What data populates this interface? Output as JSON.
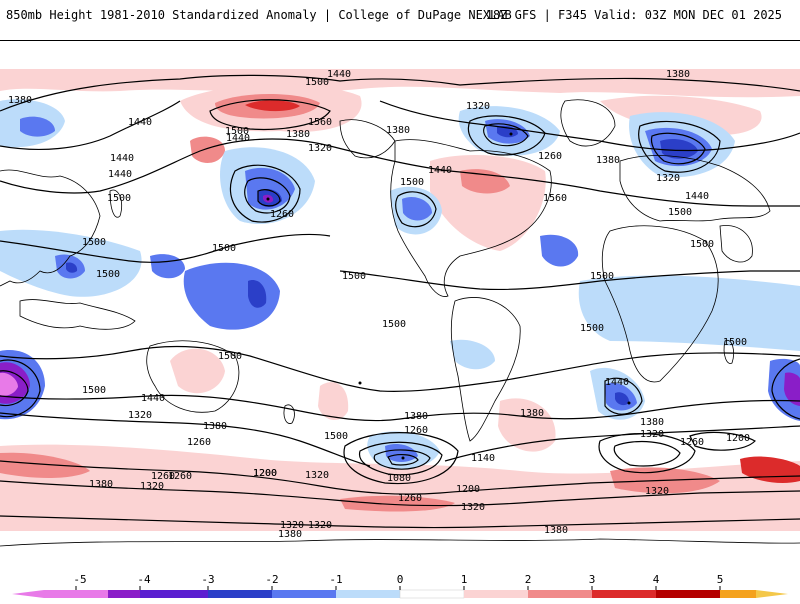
{
  "header": {
    "left_title": "850mb Height 1981-2010 Standardized Anomaly | College of DuPage NEXLAB",
    "right_title": "18Z GFS | F345 Valid: 03Z MON DEC 01 2025"
  },
  "colors": {
    "neg5": "#e87ae8",
    "neg4": "#8a1ec8",
    "neg3": "#2b3fc8",
    "neg2": "#5a78f0",
    "neg1": "#bcdcfa",
    "zero": "#ffffff",
    "pos1": "#fbd3d3",
    "pos2": "#f08a8a",
    "pos3": "#dc2b2b",
    "pos4": "#b40000",
    "pos5": "#f4a21e",
    "land": "#000000"
  },
  "colorbar": {
    "labels": [
      "-5",
      "-4",
      "-3",
      "-2",
      "-1",
      "0",
      "1",
      "2",
      "3",
      "4",
      "5"
    ]
  },
  "contour_labels": [
    {
      "text": "1440"
    },
    {
      "text": "1500"
    },
    {
      "text": "1380"
    },
    {
      "text": "1380"
    },
    {
      "text": "1440"
    },
    {
      "text": "1440"
    },
    {
      "text": "1560"
    },
    {
      "text": "1500"
    },
    {
      "text": "1440"
    },
    {
      "text": "1380"
    },
    {
      "text": "1320"
    },
    {
      "text": "1320"
    },
    {
      "text": "1380"
    },
    {
      "text": "1260"
    },
    {
      "text": "1380"
    },
    {
      "text": "1500"
    },
    {
      "text": "1440"
    },
    {
      "text": "1560"
    },
    {
      "text": "1260"
    },
    {
      "text": "1320"
    },
    {
      "text": "1440"
    },
    {
      "text": "1500"
    },
    {
      "text": "1500"
    },
    {
      "text": "1440"
    },
    {
      "text": "1500"
    },
    {
      "text": "1500"
    },
    {
      "text": "1500"
    },
    {
      "text": "1500"
    },
    {
      "text": "1500"
    },
    {
      "text": "1500"
    },
    {
      "text": "1500"
    },
    {
      "text": "1500"
    },
    {
      "text": "1500"
    },
    {
      "text": "1500"
    },
    {
      "text": "1440"
    },
    {
      "text": "1500"
    },
    {
      "text": "1500"
    },
    {
      "text": "1320"
    },
    {
      "text": "1380"
    },
    {
      "text": "1260"
    },
    {
      "text": "1200"
    },
    {
      "text": "1380"
    },
    {
      "text": "1260"
    },
    {
      "text": "1140"
    },
    {
      "text": "1080"
    },
    {
      "text": "1200"
    },
    {
      "text": "1260"
    },
    {
      "text": "1320"
    },
    {
      "text": "1380"
    },
    {
      "text": "1320"
    },
    {
      "text": "1320"
    },
    {
      "text": "1260"
    },
    {
      "text": "1440"
    },
    {
      "text": "1380"
    },
    {
      "text": "1320"
    },
    {
      "text": "1260"
    },
    {
      "text": "1200"
    },
    {
      "text": "1320"
    },
    {
      "text": "1200"
    },
    {
      "text": "1260"
    },
    {
      "text": "1380"
    },
    {
      "text": "1320"
    },
    {
      "text": "1320"
    },
    {
      "text": "1380"
    },
    {
      "text": "1380"
    }
  ]
}
